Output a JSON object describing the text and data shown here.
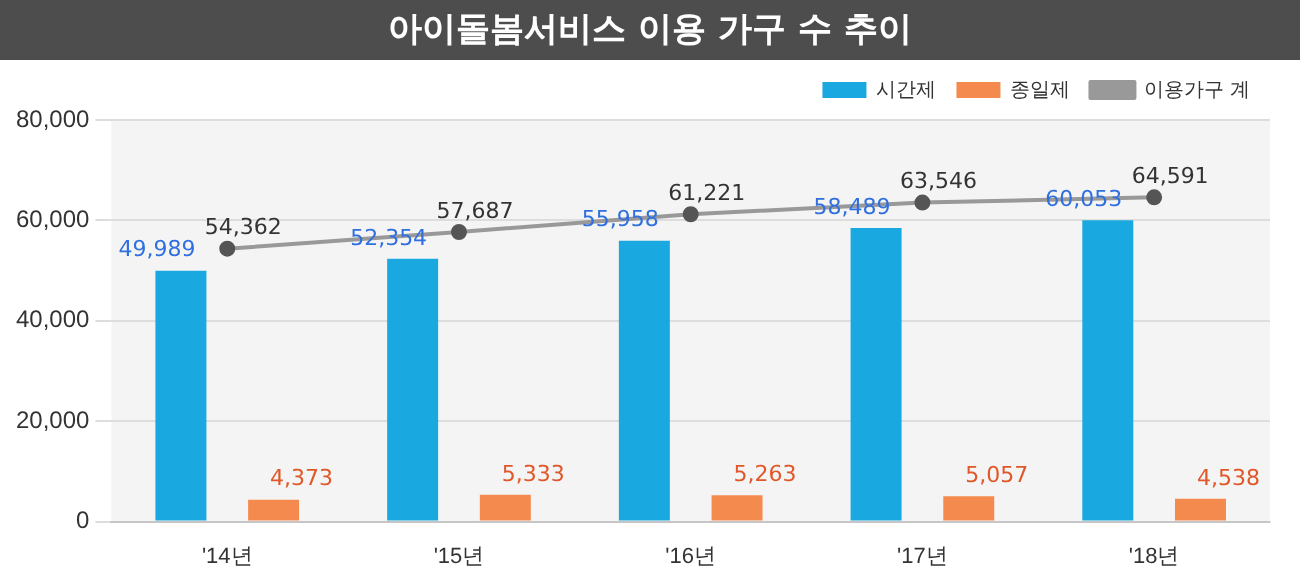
{
  "chart_data": {
    "type": "bar",
    "title": "아이돌봄서비스 이용 가구 수 추이",
    "categories": [
      "'14년",
      "'15년",
      "'16년",
      "'17년",
      "'18년"
    ],
    "series": [
      {
        "name": "시간제",
        "color": "#1aa8e0",
        "values": [
          49989,
          52354,
          55958,
          58489,
          60053
        ],
        "value_labels": [
          "49,989",
          "52,354",
          "55,958",
          "58,489",
          "60,053"
        ]
      },
      {
        "name": "종일제",
        "color": "#f58a4e",
        "values": [
          4373,
          5333,
          5263,
          5057,
          4538
        ],
        "value_labels": [
          "4,373",
          "5,333",
          "5,263",
          "5,057",
          "4,538"
        ]
      },
      {
        "name": "이용가구 계",
        "type": "line",
        "color": "#999999",
        "values": [
          54362,
          57687,
          61221,
          63546,
          64591
        ],
        "value_labels": [
          "54,362",
          "57,687",
          "61,221",
          "63,546",
          "64,591"
        ]
      }
    ],
    "ylim": [
      0,
      80000
    ],
    "yticks": [
      {
        "value": 0,
        "label": "0"
      },
      {
        "value": 20000,
        "label": "20,000"
      },
      {
        "value": 40000,
        "label": "40,000"
      },
      {
        "value": 60000,
        "label": "60,000"
      },
      {
        "value": 80000,
        "label": "80,000"
      }
    ],
    "grid": "y",
    "legend": "top right",
    "marker": "circle"
  }
}
